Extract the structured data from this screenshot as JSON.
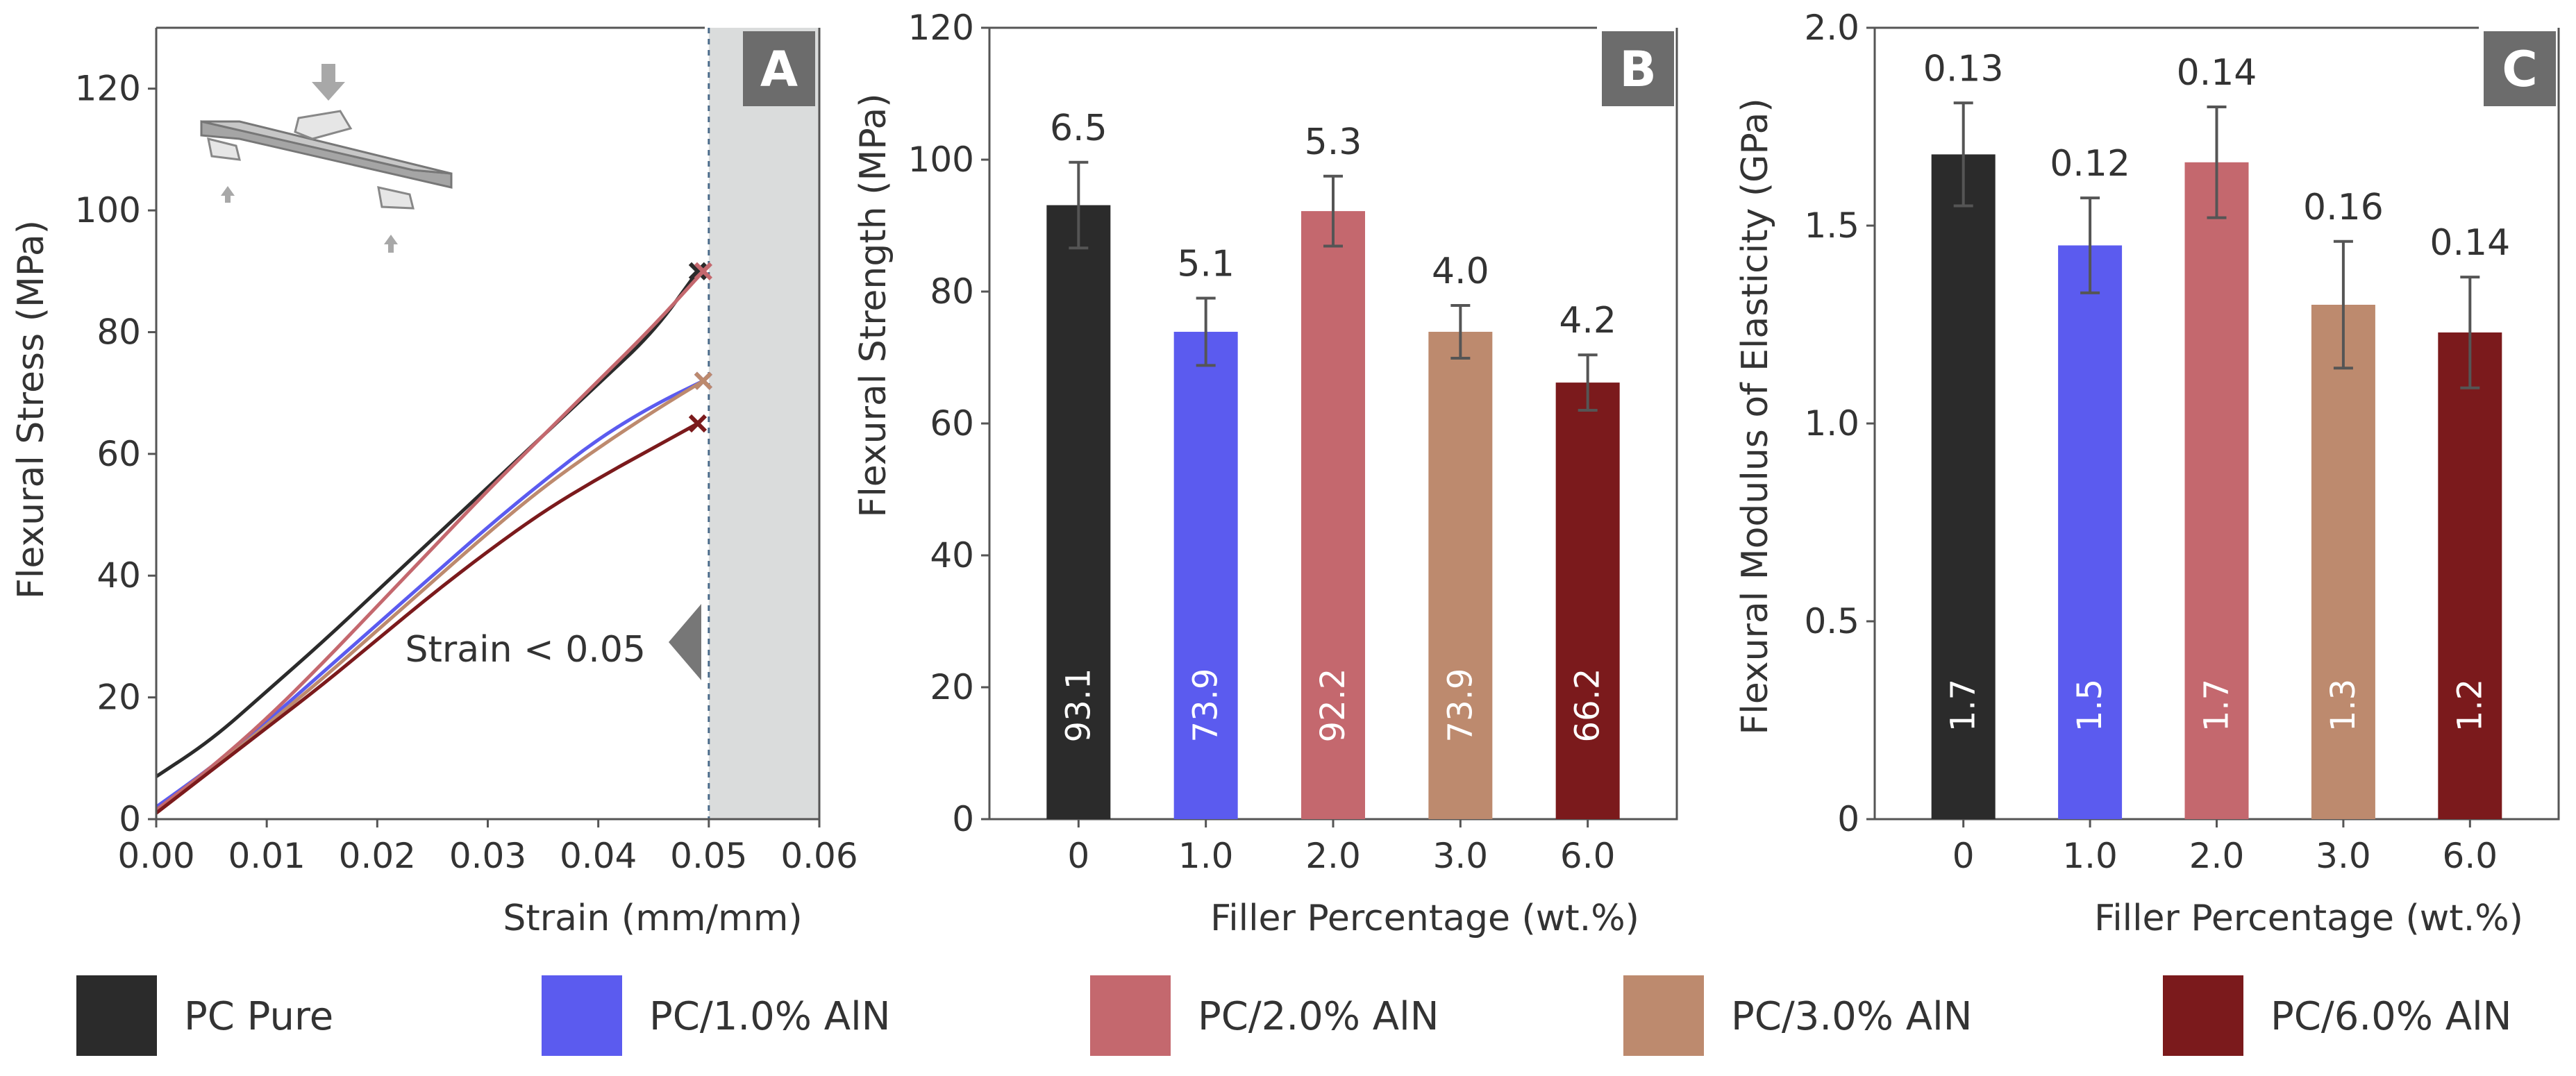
{
  "chart_data": [
    {
      "panel": "A",
      "type": "line",
      "xlabel": "Strain (mm/mm)",
      "ylabel": "Flexural Stress (MPa)",
      "xlim": [
        0,
        0.06
      ],
      "ylim": [
        0,
        130
      ],
      "xticks": [
        "0.00",
        "0.01",
        "0.02",
        "0.03",
        "0.04",
        "0.05",
        "0.06"
      ],
      "yticks": [
        "0",
        "20",
        "40",
        "60",
        "80",
        "100",
        "120"
      ],
      "annotation": "Strain < 0.05",
      "shaded_region_start": 0.05,
      "series": [
        {
          "name": "PC Pure",
          "color": "#2b2b2b",
          "points": [
            [
              0,
              7
            ],
            [
              0.005,
              13
            ],
            [
              0.01,
              21
            ],
            [
              0.015,
              29
            ],
            [
              0.02,
              37.5
            ],
            [
              0.025,
              46
            ],
            [
              0.03,
              54.5
            ],
            [
              0.035,
              63
            ],
            [
              0.04,
              71.5
            ],
            [
              0.045,
              80
            ],
            [
              0.049,
              90
            ]
          ]
        },
        {
          "name": "PC/1.0% AlN",
          "color": "#5b5bef",
          "points": [
            [
              0,
              2
            ],
            [
              0.005,
              8.5
            ],
            [
              0.01,
              16
            ],
            [
              0.015,
              24
            ],
            [
              0.02,
              32
            ],
            [
              0.025,
              40
            ],
            [
              0.03,
              48
            ],
            [
              0.035,
              55.5
            ],
            [
              0.04,
              62.5
            ],
            [
              0.045,
              68
            ],
            [
              0.0495,
              72
            ]
          ]
        },
        {
          "name": "PC/2.0% AlN",
          "color": "#c4686e",
          "points": [
            [
              0,
              1.5
            ],
            [
              0.005,
              8.5
            ],
            [
              0.01,
              16.5
            ],
            [
              0.015,
              25.5
            ],
            [
              0.02,
              35
            ],
            [
              0.025,
              44.5
            ],
            [
              0.03,
              54
            ],
            [
              0.035,
              63
            ],
            [
              0.04,
              72
            ],
            [
              0.045,
              81
            ],
            [
              0.0495,
              90
            ]
          ]
        },
        {
          "name": "PC/3.0% AlN",
          "color": "#bd8a6e",
          "points": [
            [
              0,
              1
            ],
            [
              0.005,
              8
            ],
            [
              0.01,
              15.5
            ],
            [
              0.015,
              23
            ],
            [
              0.02,
              31
            ],
            [
              0.025,
              39
            ],
            [
              0.03,
              47
            ],
            [
              0.035,
              54.5
            ],
            [
              0.04,
              61
            ],
            [
              0.045,
              67
            ],
            [
              0.0495,
              72
            ]
          ]
        },
        {
          "name": "PC/6.0% AlN",
          "color": "#7b1a1c",
          "points": [
            [
              0,
              1
            ],
            [
              0.005,
              8
            ],
            [
              0.01,
              15
            ],
            [
              0.015,
              22
            ],
            [
              0.02,
              29.5
            ],
            [
              0.025,
              37
            ],
            [
              0.03,
              44
            ],
            [
              0.035,
              50.5
            ],
            [
              0.04,
              56
            ],
            [
              0.045,
              61
            ],
            [
              0.049,
              65
            ]
          ]
        }
      ]
    },
    {
      "panel": "B",
      "type": "bar",
      "xlabel": "Filler Percentage (wt.%)",
      "ylabel": "Flexural Strength (MPa)",
      "ylim": [
        0,
        120
      ],
      "yticks": [
        "0",
        "20",
        "40",
        "60",
        "80",
        "100",
        "120"
      ],
      "categories": [
        "0",
        "1.0",
        "2.0",
        "3.0",
        "6.0"
      ],
      "values": [
        93.1,
        73.9,
        92.2,
        73.9,
        66.2
      ],
      "value_labels": [
        "93.1",
        "73.9",
        "92.2",
        "73.9",
        "66.2"
      ],
      "errors": [
        6.5,
        5.1,
        5.3,
        4.0,
        4.2
      ],
      "error_labels": [
        "6.5",
        "5.1",
        "5.3",
        "4.0",
        "4.2"
      ],
      "colors": [
        "#2b2b2b",
        "#5b5bef",
        "#c4686e",
        "#bd8a6e",
        "#7b1a1c"
      ]
    },
    {
      "panel": "C",
      "type": "bar",
      "xlabel": "Filler Percentage (wt.%)",
      "ylabel": "Flexural Modulus of Elasticity (GPa)",
      "ylim": [
        0,
        2.0
      ],
      "yticks": [
        "0",
        "0.5",
        "1.0",
        "1.5",
        "2.0"
      ],
      "categories": [
        "0",
        "1.0",
        "2.0",
        "3.0",
        "6.0"
      ],
      "values": [
        1.68,
        1.45,
        1.66,
        1.3,
        1.23
      ],
      "value_labels": [
        "1.7",
        "1.5",
        "1.7",
        "1.3",
        "1.2"
      ],
      "errors": [
        0.13,
        0.12,
        0.14,
        0.16,
        0.14
      ],
      "error_labels": [
        "0.13",
        "0.12",
        "0.14",
        "0.16",
        "0.14"
      ],
      "colors": [
        "#2b2b2b",
        "#5b5bef",
        "#c4686e",
        "#bd8a6e",
        "#7b1a1c"
      ]
    }
  ],
  "legend": [
    {
      "label": "PC Pure",
      "color": "#2b2b2b"
    },
    {
      "label": "PC/1.0% AlN",
      "color": "#5b5bef"
    },
    {
      "label": "PC/2.0% AlN",
      "color": "#c4686e"
    },
    {
      "label": "PC/3.0% AlN",
      "color": "#bd8a6e"
    },
    {
      "label": "PC/6.0% AlN",
      "color": "#7b1a1c"
    }
  ],
  "colors": {
    "axis": "#555555",
    "shade": "#dadcdc",
    "tag": "#6c6c6c",
    "errorbar": "#555555"
  }
}
